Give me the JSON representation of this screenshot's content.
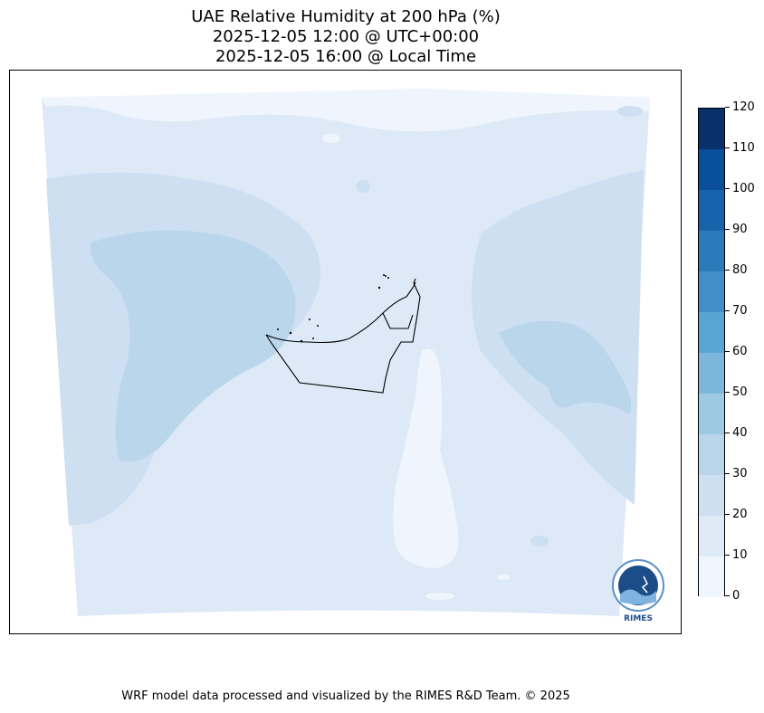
{
  "title": {
    "line1": "UAE Relative Humidity at 200 hPa (%)",
    "line2": "2025-12-05 12:00 @ UTC+00:00",
    "line3": "2025-12-05 16:00 @ Local Time"
  },
  "colorbar": {
    "ticks": [
      "0",
      "10",
      "20",
      "30",
      "40",
      "50",
      "60",
      "70",
      "80",
      "90",
      "100",
      "110",
      "120"
    ],
    "colors": [
      "#eff6fd",
      "#deebf7",
      "#cddff1",
      "#b8d5ea",
      "#9ecae1",
      "#7cb7db",
      "#5ba3d0",
      "#418fc5",
      "#2b7ab9",
      "#1764ab",
      "#0a4f97",
      "#08306b"
    ]
  },
  "map": {
    "field_colors": {
      "low": "#eef5fc",
      "mid": "#dde9f6",
      "high": "#cddff1",
      "peak": "#b9d6ea"
    },
    "border_color": "#000000"
  },
  "logo": {
    "text": "RIMES"
  },
  "footer": {
    "credit": "WRF model data processed and visualized by the RIMES R&D Team. © 2025"
  }
}
